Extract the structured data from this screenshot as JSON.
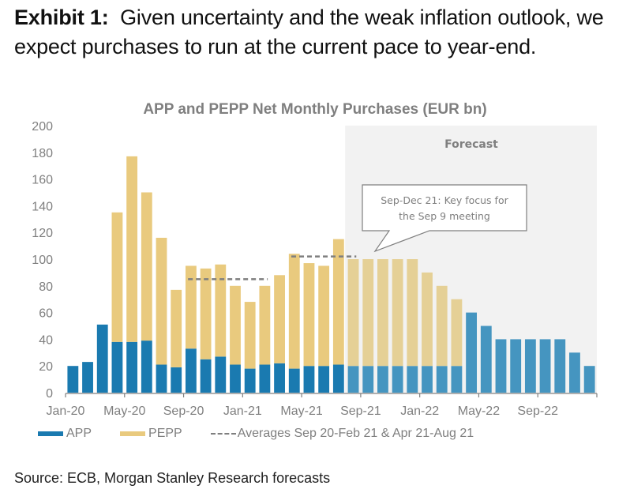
{
  "exhibit": {
    "label": "Exhibit 1:",
    "text": "Given uncertainty and the weak inflation outlook, we expect purchases to run at the current pace to year-end."
  },
  "source": "Source: ECB, Morgan Stanley Research forecasts",
  "colors": {
    "app": "#1a7ab0",
    "app_forecast": "#4595c0",
    "pepp": "#e9ca7e",
    "pepp_forecast": "#e5d096",
    "forecast_bg": "#f2f2f2",
    "axis": "#7f7f7f",
    "average_line": "#7f7f7f"
  },
  "chart_data": {
    "type": "bar",
    "stacked": true,
    "title": "APP and PEPP Net Monthly Purchases (EUR bn)",
    "xlabel": "",
    "ylabel": "",
    "ylim": [
      0,
      200
    ],
    "yticks": [
      0,
      20,
      40,
      60,
      80,
      100,
      120,
      140,
      160,
      180,
      200
    ],
    "xtick_labels": [
      "Jan-20",
      "May-20",
      "Sep-20",
      "Jan-21",
      "May-21",
      "Sep-21",
      "Jan-22",
      "May-22",
      "Sep-22"
    ],
    "grid": false,
    "legend_position": "bottom",
    "categories": [
      "Jan-20",
      "Feb-20",
      "Mar-20",
      "Apr-20",
      "May-20",
      "Jun-20",
      "Jul-20",
      "Aug-20",
      "Sep-20",
      "Oct-20",
      "Nov-20",
      "Dec-20",
      "Jan-21",
      "Feb-21",
      "Mar-21",
      "Apr-21",
      "May-21",
      "Jun-21",
      "Jul-21",
      "Aug-21",
      "Sep-21",
      "Oct-21",
      "Nov-21",
      "Dec-21",
      "Jan-22",
      "Feb-22",
      "Mar-22",
      "Apr-22",
      "May-22",
      "Jun-22",
      "Jul-22",
      "Aug-22",
      "Sep-22",
      "Oct-22",
      "Nov-22",
      "Dec-22"
    ],
    "forecast_start": "Aug-21",
    "series": [
      {
        "name": "APP",
        "values": [
          20,
          23,
          51,
          38,
          38,
          39,
          21,
          19,
          33,
          25,
          27,
          21,
          18,
          21,
          22,
          18,
          20,
          20,
          21,
          20,
          20,
          20,
          20,
          20,
          20,
          20,
          20,
          60,
          50,
          40,
          40,
          40,
          40,
          40,
          30,
          20
        ]
      },
      {
        "name": "PEPP",
        "values": [
          0,
          0,
          0,
          97,
          139,
          111,
          95,
          58,
          62,
          68,
          69,
          59,
          50,
          59,
          66,
          86,
          77,
          75,
          94,
          80,
          80,
          80,
          80,
          80,
          70,
          60,
          50,
          0,
          0,
          0,
          0,
          0,
          0,
          0,
          0,
          0
        ]
      }
    ],
    "averages": [
      {
        "label": "Sep 20-Feb 21",
        "from": "Sep-20",
        "to": "Feb-21",
        "value": 85
      },
      {
        "label": "Apr 21-Aug 21",
        "from": "Apr-21",
        "to": "Aug-21",
        "value": 102
      }
    ],
    "legend": [
      "APP",
      "PEPP",
      "Averages Sep 20-Feb 21 & Apr 21-Aug 21"
    ],
    "annotations": {
      "forecast_label": "Forecast",
      "callout_line1": "Sep-Dec 21: Key focus for",
      "callout_line2": "the Sep 9 meeting"
    }
  }
}
